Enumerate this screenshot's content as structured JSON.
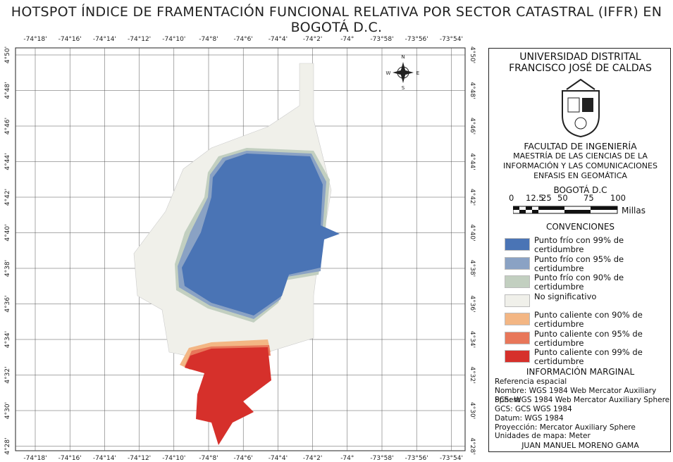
{
  "title": "HOTSPOT ÍNDICE DE FRAMENTACIÓN FUNCIONAL RELATIVA POR SECTOR CATASTRAL (IFFR) EN BOGOTÁ D.C.",
  "map": {
    "lon_labels": [
      "-74°18'",
      "-74°16'",
      "-74°14'",
      "-74°12'",
      "-74°10'",
      "-74°8'",
      "-74°6'",
      "-74°4'",
      "-74°2'",
      "-74°",
      "-73°58'",
      "-73°56'",
      "-73°54'"
    ],
    "lat_labels": [
      "4°50'",
      "4°48'",
      "4°46'",
      "4°44'",
      "4°42'",
      "4°40'",
      "4°38'",
      "4°36'",
      "4°34'",
      "4°32'",
      "4°30'",
      "4°28'"
    ],
    "compass": {
      "n": "N",
      "s": "S",
      "e": "E",
      "w": "W"
    }
  },
  "panel": {
    "university": "UNIVERSIDAD DISTRITAL FRANCISCO JOSÉ DE CALDAS",
    "faculty": "FACULTAD DE INGENIERÍA",
    "program": "MAESTRÍA DE LAS CIENCIAS DE LA INFORMACIÓN Y LAS COMUNICACIONES ENFASIS EN GEOMÁTICA",
    "place": "BOGOTÁ D.C",
    "scale": {
      "labels": [
        "0",
        "12.5",
        "25",
        "50",
        "75",
        "100"
      ],
      "unit": "Millas"
    },
    "legend_title": "CONVENCIONES",
    "legend": [
      {
        "label": "Punto frío con 99% de certidumbre",
        "color": "#4a74b5"
      },
      {
        "label": "Punto frío con 95% de certidumbre",
        "color": "#8aa2c4"
      },
      {
        "label": "Punto frío con 90% de certidumbre",
        "color": "#c2cfc0"
      },
      {
        "label": "No significativo",
        "color": "#f0f0ea"
      },
      {
        "label": "Punto caliente con 90% de certidumbre",
        "color": "#f3b684"
      },
      {
        "label": "Punto caliente con 95% de certidumbre",
        "color": "#e8775a"
      },
      {
        "label": "Punto caliente con 99% de certidumbre",
        "color": "#d6302b"
      }
    ],
    "info_title": "INFORMACIÓN MARGINAL",
    "info": [
      "Referencia espacial",
      "Nombre: WGS 1984 Web Mercator Auxiliary Sphere",
      "PCS: WGS 1984 Web Mercator Auxiliary Sphere",
      "GCS: GCS WGS 1984",
      "Datum: WGS 1984",
      "Proyección: Mercator Auxiliary Sphere",
      "Unidades de mapa: Meter"
    ],
    "author": "JUAN MANUEL MORENO GAMA"
  }
}
